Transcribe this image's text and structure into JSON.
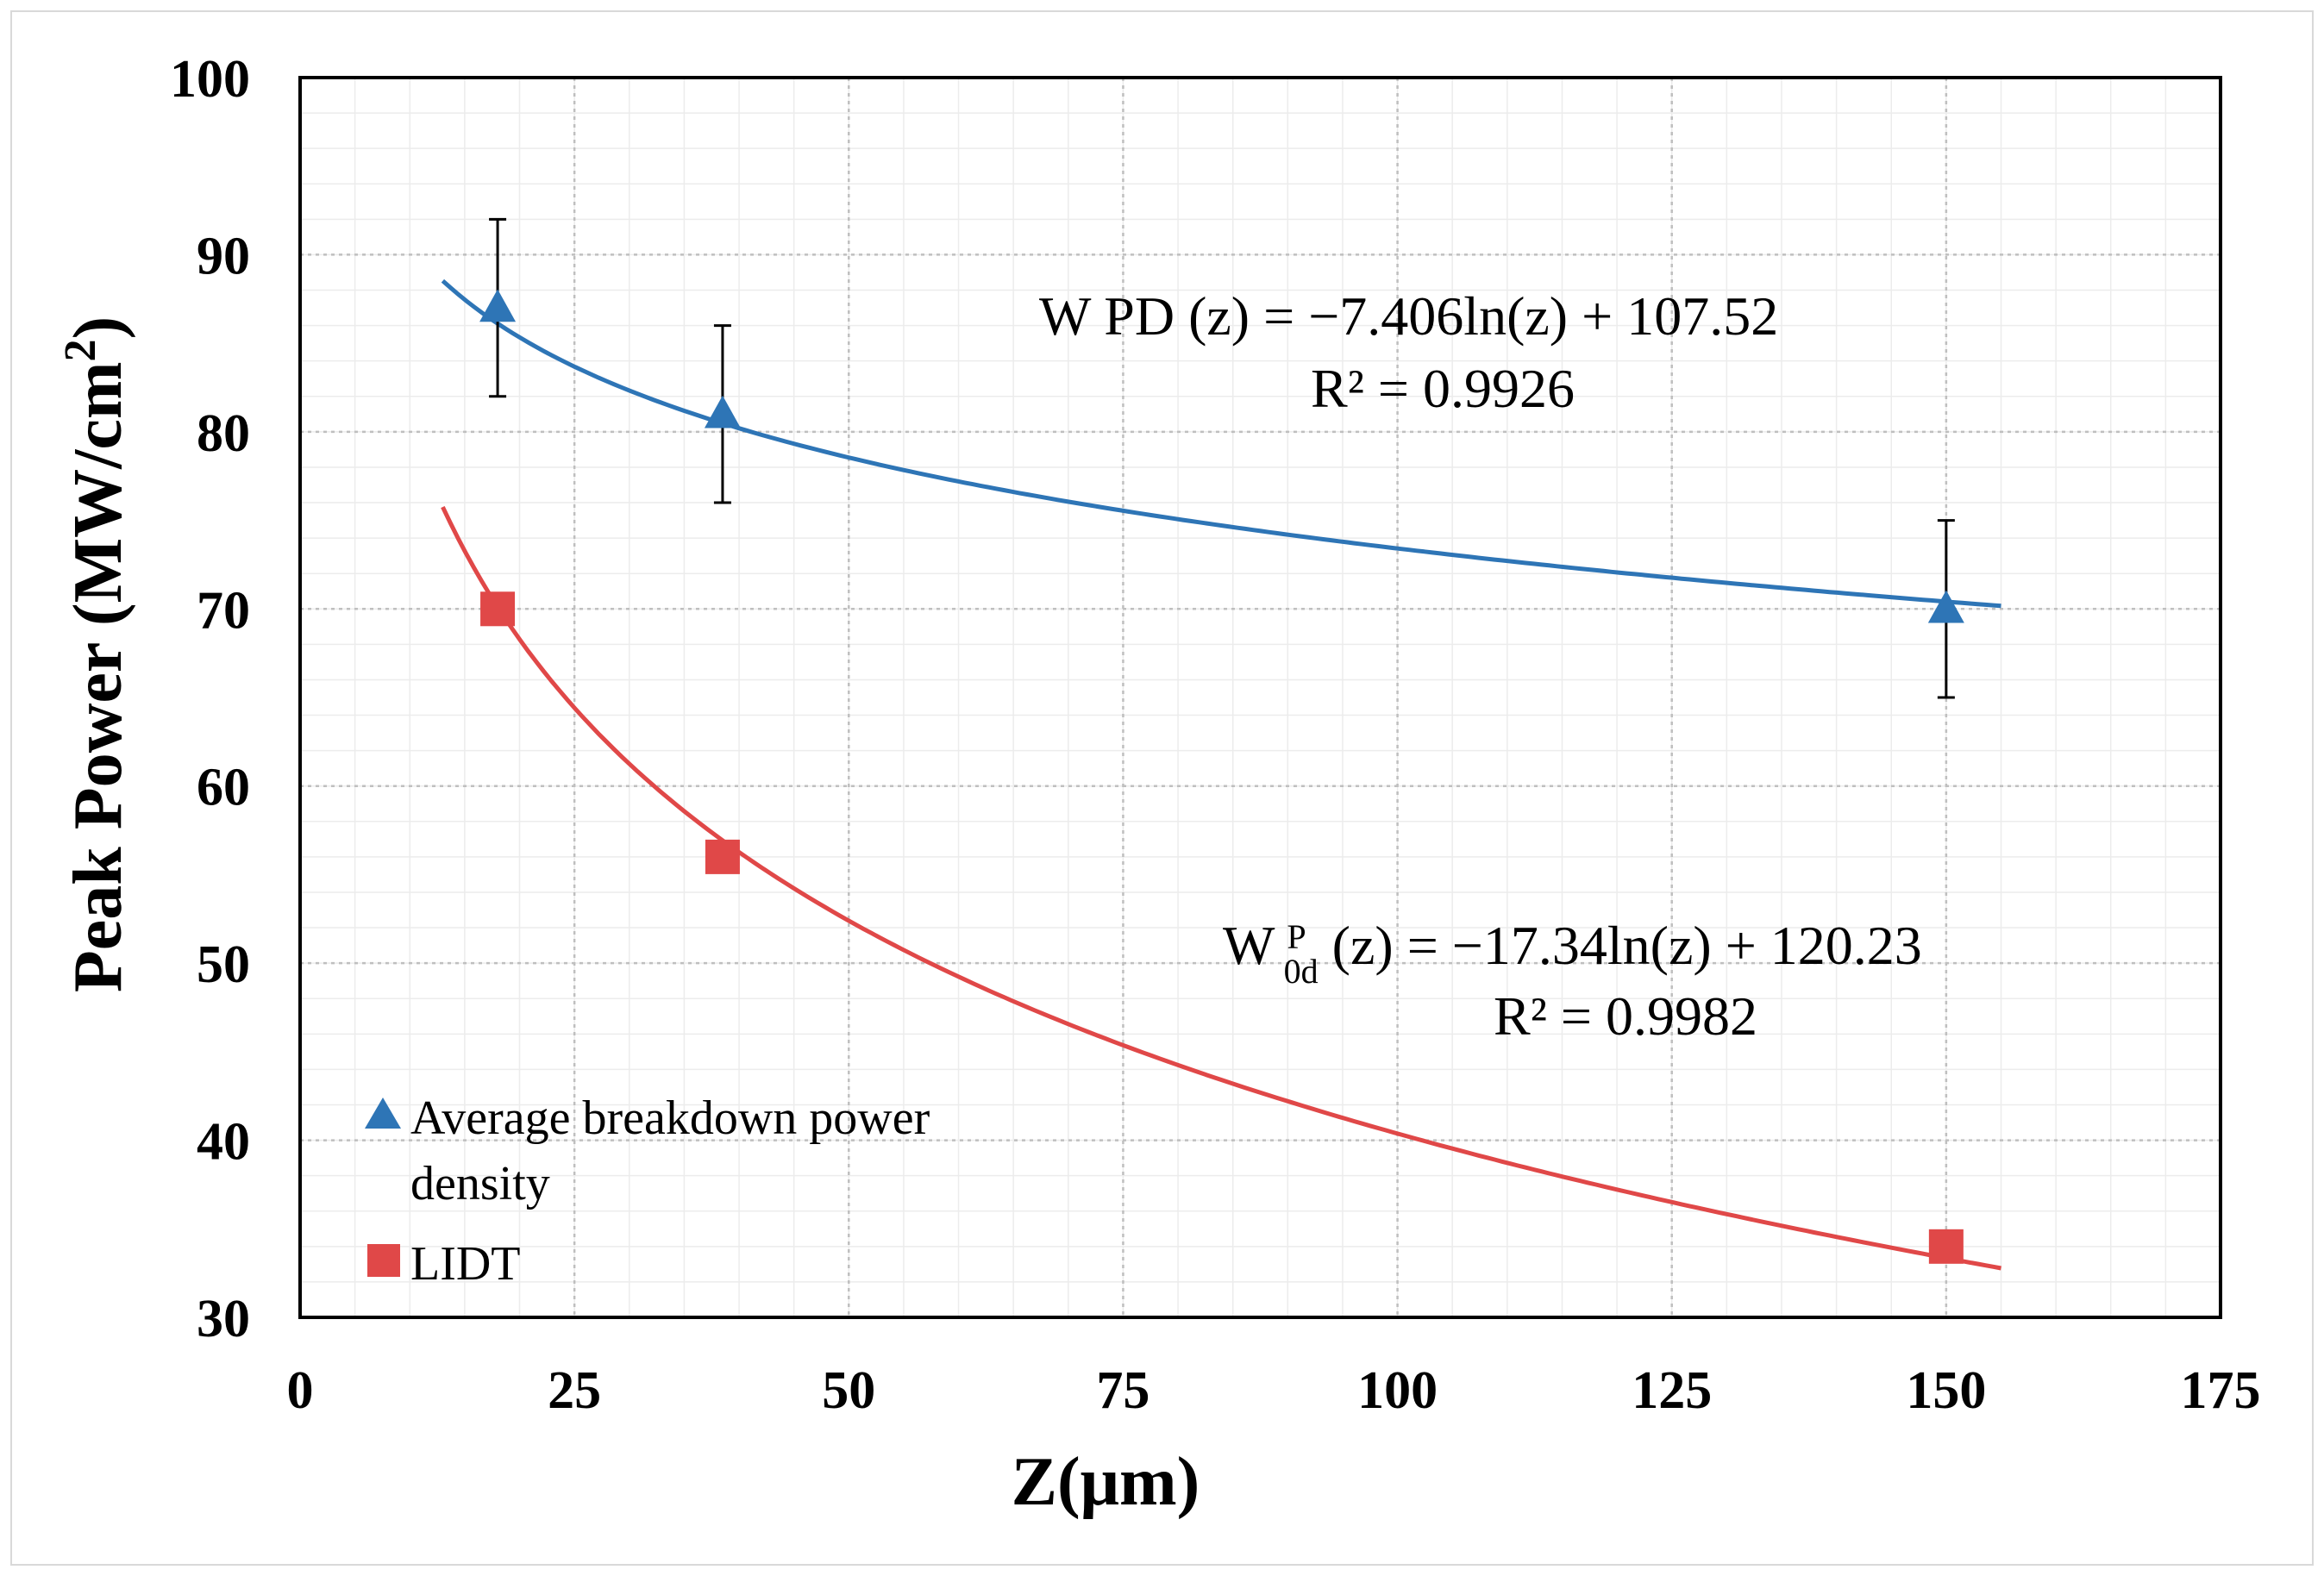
{
  "chart_data": {
    "type": "scatter",
    "title": "",
    "xlabel": "Z(μm)",
    "ylabel_main": "Peak Power (MW/cm",
    "ylabel_sup": "2",
    "ylabel_tail": ")",
    "xlim": [
      0,
      175
    ],
    "ylim": [
      30,
      100
    ],
    "x_ticks": [
      0,
      25,
      50,
      75,
      100,
      125,
      150,
      175
    ],
    "y_ticks": [
      30,
      40,
      50,
      60,
      70,
      80,
      90,
      100
    ],
    "x_tick_labels": [
      "0",
      "25",
      "50",
      "75",
      "100",
      "125",
      "150",
      "175"
    ],
    "y_tick_labels": [
      "30",
      "40",
      "50",
      "60",
      "70",
      "80",
      "90",
      "100"
    ],
    "grid": true,
    "legend_position": "bottom-left",
    "series": [
      {
        "name": "Average breakdown power density",
        "legend_line1": "Average breakdown power",
        "legend_line2": "density",
        "marker": "triangle",
        "color": "#2e75b6",
        "x": [
          18,
          38.5,
          150
        ],
        "y": [
          87,
          81,
          70
        ],
        "error_low": [
          82,
          76,
          65
        ],
        "error_high": [
          92,
          86,
          75
        ],
        "trend": {
          "type": "log",
          "a": -7.406,
          "b": 107.52,
          "x_start": 13,
          "x_end": 155
        }
      },
      {
        "name": "LIDT",
        "legend_line1": "LIDT",
        "marker": "square",
        "color": "#e04848",
        "x": [
          18,
          38.5,
          150
        ],
        "y": [
          70,
          56,
          34
        ],
        "trend": {
          "type": "log",
          "a": -17.34,
          "b": 120.23,
          "x_start": 13,
          "x_end": 155
        }
      }
    ],
    "annotations": {
      "blue_equation": "W PD (z) = −7.406ln(z) + 107.52",
      "blue_r2": "R² = 0.9926",
      "red_eq_w": "W",
      "red_eq_sup": "P",
      "red_eq_sub": "0d",
      "red_eq_rest": "(z)  = −17.34ln(z) + 120.23",
      "red_r2": "R² = 0.9982"
    }
  }
}
